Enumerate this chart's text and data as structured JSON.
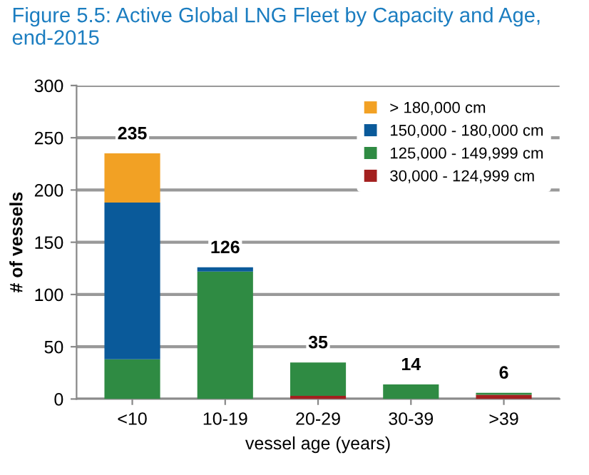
{
  "chart_data": {
    "type": "bar",
    "stacked": true,
    "title": "Figure 5.5: Active Global LNG Fleet by Capacity and Age, end-2015",
    "xlabel": "vessel age (years)",
    "ylabel": "# of vessels",
    "categories": [
      "<10",
      "10-19",
      "20-29",
      "30-39",
      ">39"
    ],
    "series": [
      {
        "name": "30,000 - 124,999 cm",
        "color": "#a3201f",
        "values": [
          0,
          0,
          3,
          0,
          4
        ]
      },
      {
        "name": "125,000 - 149,999 cm",
        "color": "#2f8b43",
        "values": [
          38,
          122,
          32,
          14,
          2
        ]
      },
      {
        "name": "150,000 - 180,000 cm",
        "color": "#0a5a9a",
        "values": [
          150,
          4,
          0,
          0,
          0
        ]
      },
      {
        "name": "> 180,000 cm",
        "color": "#f2a124",
        "values": [
          47,
          0,
          0,
          0,
          0
        ]
      }
    ],
    "totals": [
      "235",
      "126",
      "35",
      "14",
      "6"
    ],
    "ylim": [
      0,
      300
    ],
    "yticks": [
      0,
      50,
      100,
      150,
      200,
      250,
      300
    ],
    "grid": "y",
    "legend": "top right"
  }
}
